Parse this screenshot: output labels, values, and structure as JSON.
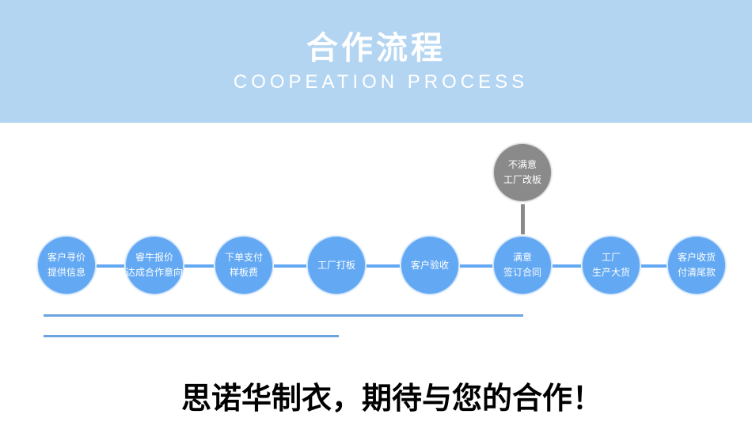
{
  "header": {
    "title": "合作流程",
    "subtitle": "COOPEATION PROCESS"
  },
  "steps": [
    {
      "lines": [
        "客户寻价",
        "提供信息"
      ]
    },
    {
      "lines": [
        "睿牛报价",
        "达成合作意向"
      ]
    },
    {
      "lines": [
        "下单支付",
        "样板费"
      ]
    },
    {
      "lines": [
        "工厂打板"
      ]
    },
    {
      "lines": [
        "客户验收"
      ]
    },
    {
      "lines": [
        "满意",
        "签订合同"
      ]
    },
    {
      "lines": [
        "工厂",
        "生产大货"
      ]
    },
    {
      "lines": [
        "客户收货",
        "付清尾款"
      ]
    }
  ],
  "branch": {
    "lines": [
      "不满意",
      "工厂改板"
    ]
  },
  "slogan": "思诺华制衣，期待与您的合作！",
  "colors": {
    "header": "#b3d5f2",
    "step": "#62a8f3",
    "branch": "#8a8a8a"
  }
}
